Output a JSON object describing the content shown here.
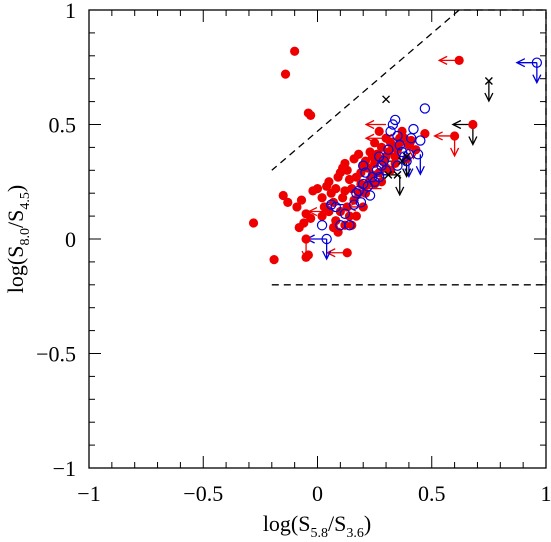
{
  "chart_data": {
    "type": "scatter",
    "xlabel": {
      "prefix": "log(S",
      "sub1": "5.8",
      "mid": "/S",
      "sub2": "3.6",
      "suffix": ")"
    },
    "ylabel": {
      "prefix": "log(S",
      "sub1": "8.0",
      "mid": "/S",
      "sub2": "4.5",
      "suffix": ")"
    },
    "xlim": [
      -1,
      1
    ],
    "ylim": [
      -1,
      1
    ],
    "xticks": [
      {
        "v": -1,
        "label": "−1"
      },
      {
        "v": -0.5,
        "label": "−0.5"
      },
      {
        "v": 0,
        "label": "0"
      },
      {
        "v": 0.5,
        "label": "0.5"
      },
      {
        "v": 1,
        "label": "1"
      }
    ],
    "yticks": [
      {
        "v": -1,
        "label": "−1"
      },
      {
        "v": -0.5,
        "label": "−0.5"
      },
      {
        "v": 0,
        "label": "0"
      },
      {
        "v": 0.5,
        "label": "0.5"
      },
      {
        "v": 1,
        "label": "1"
      }
    ],
    "grid": false,
    "legend": "none",
    "wedge": [
      [
        -0.2,
        -0.2
      ],
      [
        0.6,
        -0.2
      ],
      [
        0.6,
        0.0
      ],
      [
        -0.2,
        0.0
      ]
    ],
    "wedge_full": [
      [
        -0.2,
        -0.2
      ],
      [
        1.0,
        -0.2
      ],
      [
        1.0,
        1.0
      ],
      [
        0.62,
        1.0
      ],
      [
        -0.2,
        0.3
      ]
    ],
    "colors": {
      "red": "#ee0000",
      "blue": "#0000dd",
      "black": "#000000"
    },
    "series": [
      {
        "marker": "filled-circle",
        "color": "red",
        "points": [
          [
            -0.1,
            0.82
          ],
          [
            -0.14,
            0.72
          ],
          [
            -0.04,
            0.55
          ],
          [
            -0.03,
            0.54
          ],
          [
            -0.28,
            0.07
          ],
          [
            -0.19,
            -0.09
          ],
          [
            -0.15,
            0.19
          ],
          [
            -0.13,
            0.16
          ],
          [
            -0.09,
            0.14
          ],
          [
            -0.07,
            0.17
          ],
          [
            -0.05,
            0.11
          ],
          [
            -0.03,
            0.09
          ],
          [
            -0.06,
            0.07
          ],
          [
            -0.08,
            0.05
          ],
          [
            -0.05,
            0.0
          ],
          [
            -0.04,
            -0.07
          ],
          [
            -0.05,
            -0.08
          ],
          [
            -0.02,
            0.21
          ],
          [
            0.0,
            0.22
          ],
          [
            0.02,
            0.18
          ],
          [
            0.03,
            0.14
          ],
          [
            0.04,
            0.23
          ],
          [
            0.05,
            0.25
          ],
          [
            0.06,
            0.2
          ],
          [
            0.07,
            0.16
          ],
          [
            0.08,
            0.22
          ],
          [
            0.09,
            0.27
          ],
          [
            0.1,
            0.29
          ],
          [
            0.11,
            0.31
          ],
          [
            0.12,
            0.33
          ],
          [
            0.13,
            0.3
          ],
          [
            0.14,
            0.26
          ],
          [
            0.15,
            0.22
          ],
          [
            0.16,
            0.35
          ],
          [
            0.17,
            0.27
          ],
          [
            0.18,
            0.37
          ],
          [
            0.19,
            0.29
          ],
          [
            0.2,
            0.32
          ],
          [
            0.21,
            0.34
          ],
          [
            0.22,
            0.31
          ],
          [
            0.23,
            0.38
          ],
          [
            0.24,
            0.28
          ],
          [
            0.25,
            0.33
          ],
          [
            0.26,
            0.37
          ],
          [
            0.27,
            0.35
          ],
          [
            0.28,
            0.4
          ],
          [
            0.29,
            0.34
          ],
          [
            0.3,
            0.36
          ],
          [
            0.31,
            0.38
          ],
          [
            0.32,
            0.42
          ],
          [
            0.33,
            0.4
          ],
          [
            0.34,
            0.36
          ],
          [
            0.36,
            0.42
          ],
          [
            0.38,
            0.44
          ],
          [
            0.4,
            0.41
          ],
          [
            0.41,
            0.43
          ],
          [
            0.43,
            0.39
          ],
          [
            0.08,
            0.08
          ],
          [
            0.1,
            0.12
          ],
          [
            0.11,
            0.18
          ],
          [
            0.12,
            0.21
          ],
          [
            0.13,
            0.14
          ],
          [
            0.14,
            0.1
          ],
          [
            0.15,
            0.06
          ],
          [
            0.16,
            0.17
          ],
          [
            0.18,
            0.2
          ],
          [
            0.19,
            0.24
          ],
          [
            0.2,
            0.14
          ],
          [
            0.21,
            0.2
          ],
          [
            0.22,
            0.24
          ],
          [
            0.23,
            0.26
          ],
          [
            0.25,
            0.24
          ],
          [
            0.27,
            0.29
          ],
          [
            0.28,
            0.25
          ],
          [
            0.3,
            0.31
          ],
          [
            0.32,
            0.3
          ],
          [
            0.34,
            0.33
          ],
          [
            0.05,
            0.12
          ],
          [
            0.07,
            0.05
          ],
          [
            0.02,
            0.1
          ],
          [
            0.09,
            0.03
          ],
          [
            0.12,
            0.06
          ],
          [
            0.17,
            0.1
          ],
          [
            0.24,
            0.36
          ],
          [
            0.37,
            0.47
          ],
          [
            0.35,
            0.39
          ],
          [
            0.39,
            0.35
          ],
          [
            0.3,
            0.44
          ],
          [
            0.27,
            0.47
          ],
          [
            0.25,
            0.42
          ],
          [
            0.36,
            0.44
          ],
          [
            0.62,
            0.78
          ],
          [
            0.6,
            0.45
          ],
          [
            0.68,
            0.5
          ],
          [
            0.47,
            0.46
          ],
          [
            0.13,
            -0.06
          ]
        ]
      },
      {
        "marker": "open-circle",
        "color": "blue",
        "points": [
          [
            0.04,
            0.0
          ],
          [
            0.02,
            0.06
          ],
          [
            0.08,
            0.14
          ],
          [
            0.12,
            0.11
          ],
          [
            0.14,
            0.06
          ],
          [
            0.16,
            0.15
          ],
          [
            0.17,
            0.2
          ],
          [
            0.19,
            0.16
          ],
          [
            0.2,
            0.24
          ],
          [
            0.21,
            0.29
          ],
          [
            0.22,
            0.23
          ],
          [
            0.23,
            0.19
          ],
          [
            0.24,
            0.27
          ],
          [
            0.25,
            0.25
          ],
          [
            0.26,
            0.3
          ],
          [
            0.27,
            0.27
          ],
          [
            0.28,
            0.32
          ],
          [
            0.29,
            0.34
          ],
          [
            0.3,
            0.3
          ],
          [
            0.31,
            0.39
          ],
          [
            0.32,
            0.47
          ],
          [
            0.33,
            0.5
          ],
          [
            0.34,
            0.52
          ],
          [
            0.35,
            0.45
          ],
          [
            0.36,
            0.41
          ],
          [
            0.37,
            0.38
          ],
          [
            0.38,
            0.36
          ],
          [
            0.39,
            0.34
          ],
          [
            0.4,
            0.37
          ],
          [
            0.41,
            0.44
          ],
          [
            0.42,
            0.48
          ],
          [
            0.45,
            0.43
          ],
          [
            0.47,
            0.57
          ],
          [
            0.44,
            0.37
          ],
          [
            0.2,
            0.32
          ],
          [
            0.18,
            0.21
          ],
          [
            0.1,
            0.06
          ],
          [
            0.06,
            0.15
          ],
          [
            0.27,
            0.36
          ],
          [
            0.35,
            0.32
          ],
          [
            0.96,
            0.77
          ]
        ]
      },
      {
        "marker": "cross",
        "color": "black",
        "points": [
          [
            0.3,
            0.61
          ],
          [
            0.75,
            0.69
          ],
          [
            0.35,
            0.28
          ],
          [
            0.31,
            0.28
          ],
          [
            0.37,
            0.34
          ],
          [
            0.39,
            0.36
          ]
        ]
      }
    ],
    "upper_limits": [
      {
        "x": 0.4,
        "y": 0.36,
        "color": "blue"
      },
      {
        "x": 0.45,
        "y": 0.37,
        "color": "blue"
      },
      {
        "x": 0.36,
        "y": 0.28,
        "color": "black"
      },
      {
        "x": 0.39,
        "y": 0.36,
        "color": "black"
      },
      {
        "x": 0.68,
        "y": 0.5,
        "color": "black"
      },
      {
        "x": 0.75,
        "y": 0.69,
        "color": "black"
      },
      {
        "x": 0.6,
        "y": 0.45,
        "color": "red"
      },
      {
        "x": 0.42,
        "y": 0.44,
        "color": "red"
      },
      {
        "x": 0.04,
        "y": 0.0,
        "color": "blue"
      },
      {
        "x": 0.96,
        "y": 0.77,
        "color": "blue"
      },
      {
        "x": -0.05,
        "y": 0.0,
        "color": "red"
      },
      {
        "x": 0.35,
        "y": 0.45,
        "color": "red"
      }
    ],
    "left_limits": [
      {
        "x": 0.62,
        "y": 0.78,
        "color": "red"
      },
      {
        "x": 0.96,
        "y": 0.77,
        "color": "blue"
      },
      {
        "x": 0.6,
        "y": 0.45,
        "color": "red"
      },
      {
        "x": 0.68,
        "y": 0.5,
        "color": "black"
      },
      {
        "x": 0.3,
        "y": 0.5,
        "color": "red"
      },
      {
        "x": 0.3,
        "y": 0.44,
        "color": "red"
      },
      {
        "x": 0.13,
        "y": -0.06,
        "color": "red"
      },
      {
        "x": 0.04,
        "y": 0.0,
        "color": "blue"
      },
      {
        "x": 0.05,
        "y": 0.12,
        "color": "red"
      },
      {
        "x": 0.12,
        "y": 0.15,
        "color": "blue"
      },
      {
        "x": 0.38,
        "y": 0.44,
        "color": "red"
      },
      {
        "x": 0.36,
        "y": 0.34,
        "color": "black"
      },
      {
        "x": 0.35,
        "y": 0.28,
        "color": "black"
      },
      {
        "x": 0.22,
        "y": 0.14,
        "color": "red"
      },
      {
        "x": 0.28,
        "y": 0.22,
        "color": "red"
      }
    ]
  }
}
